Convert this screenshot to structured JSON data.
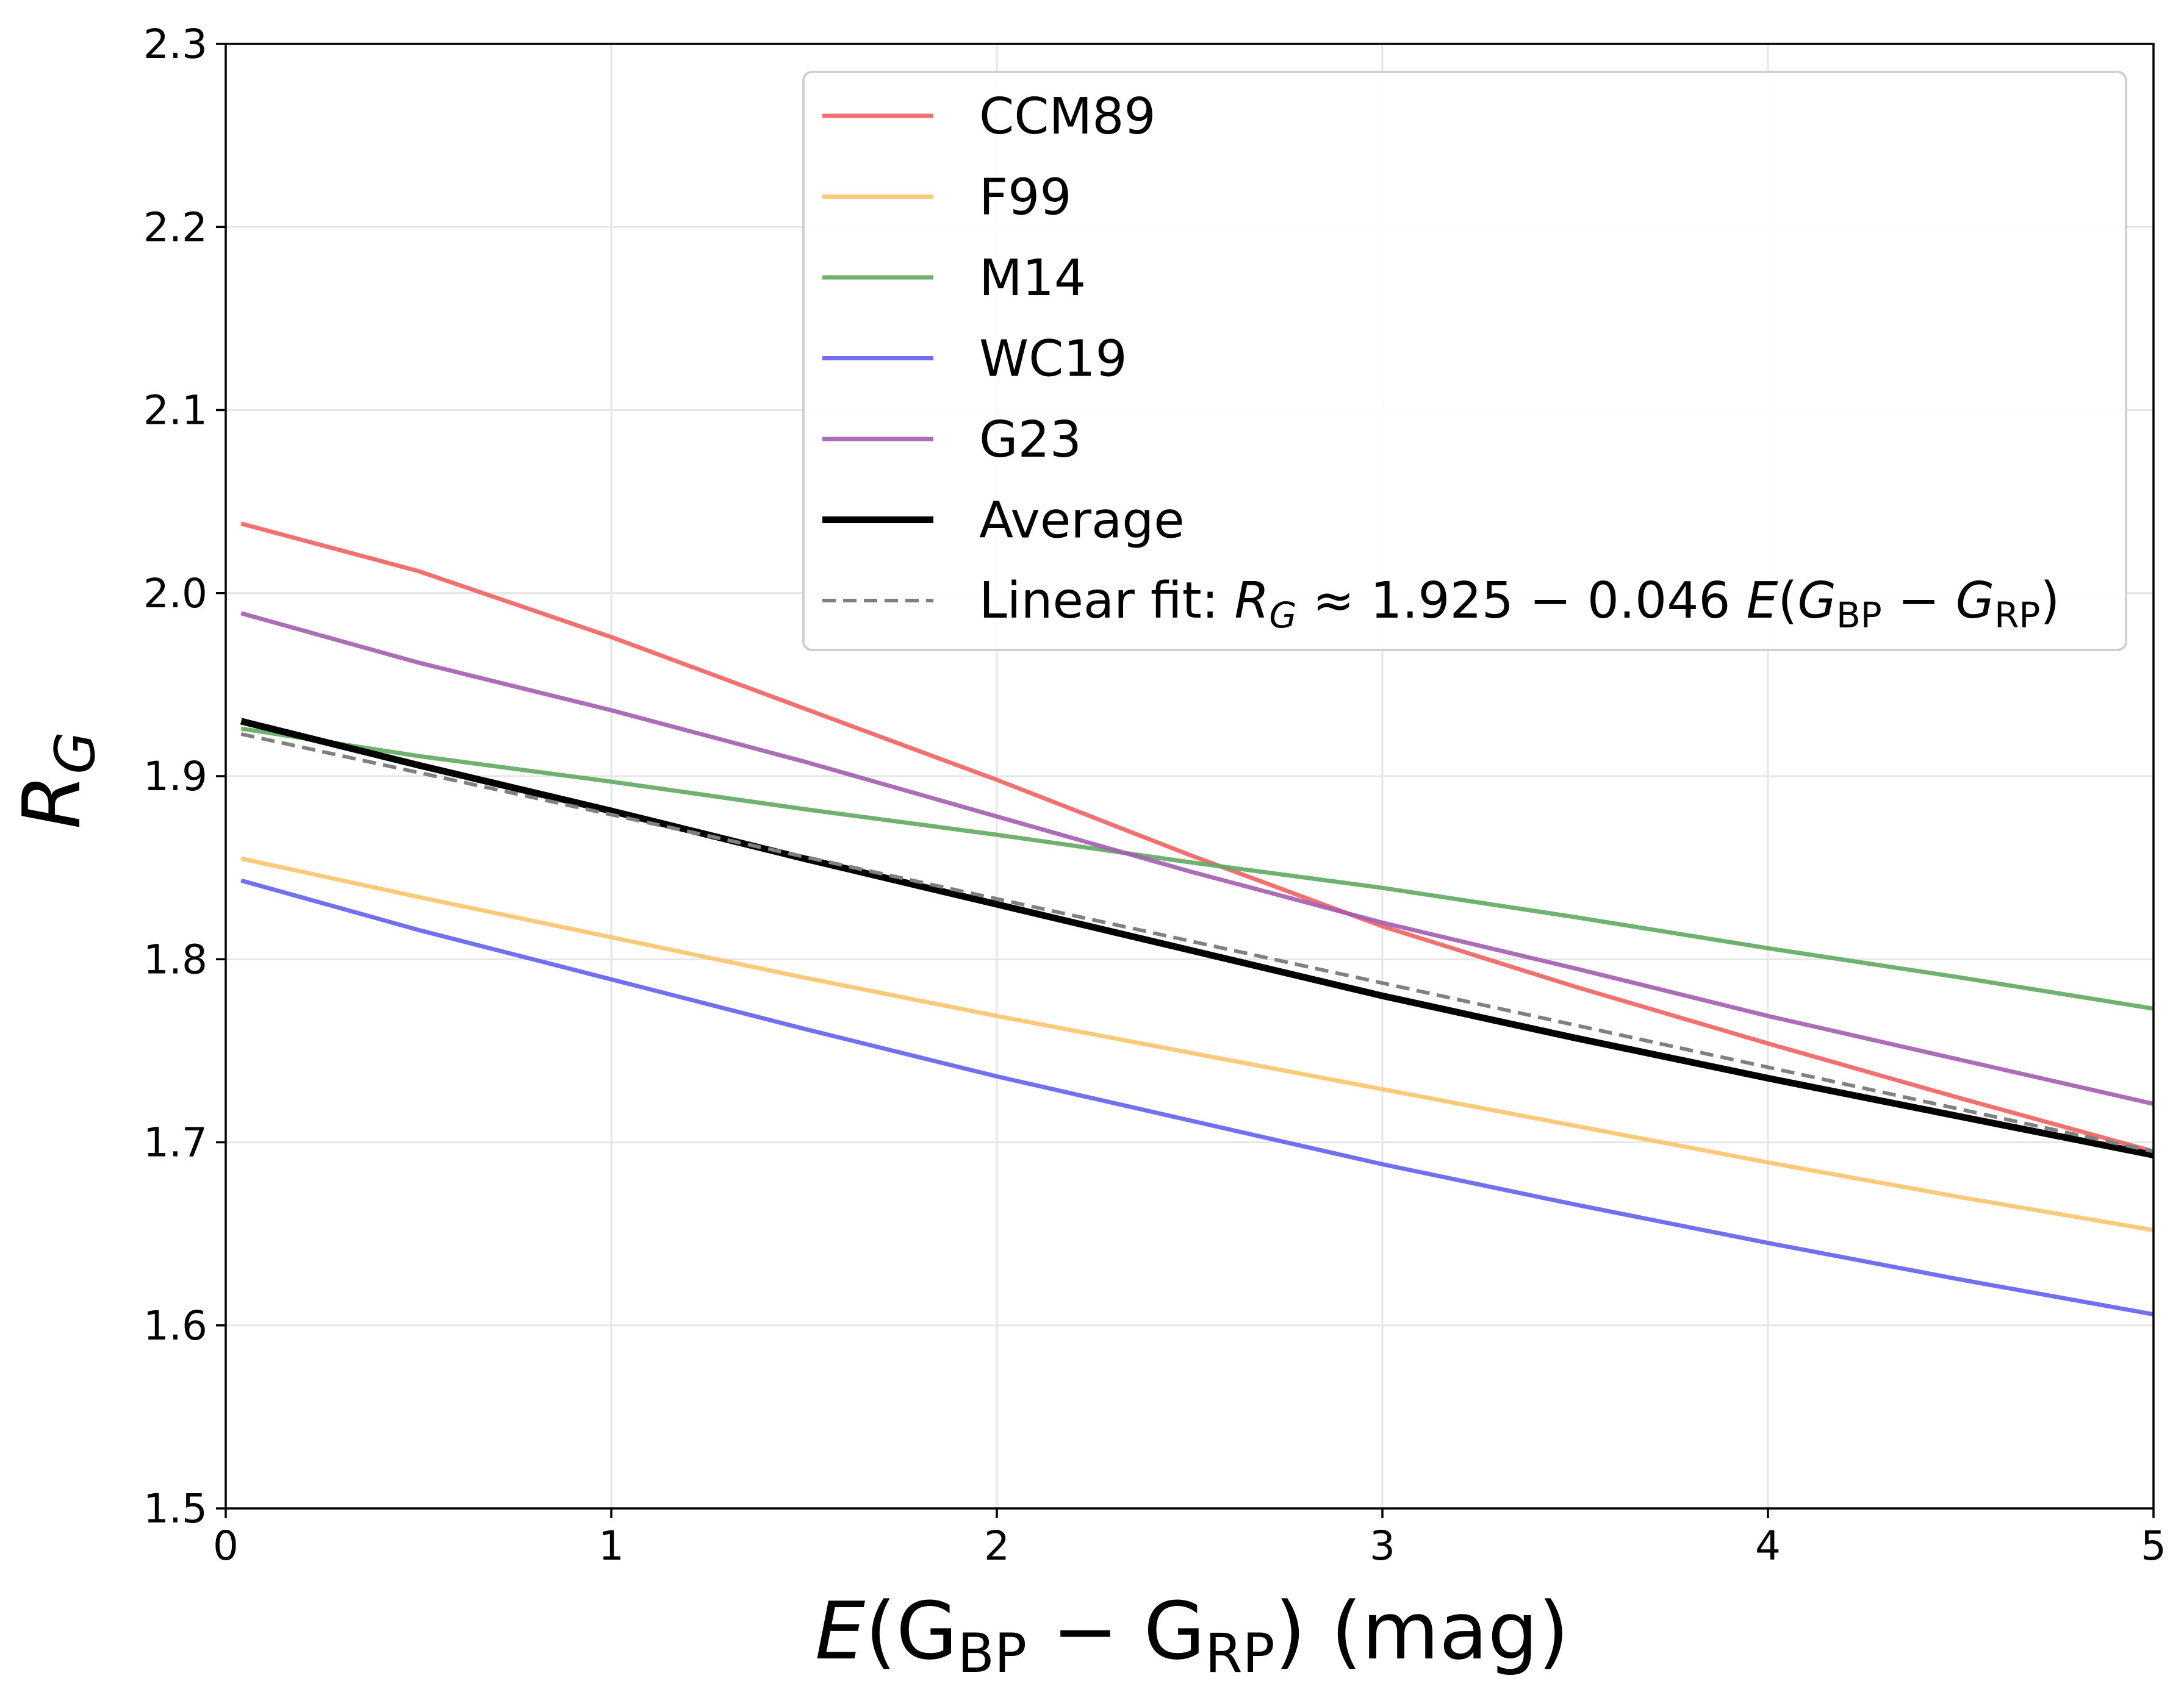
{
  "chart_data": {
    "type": "line",
    "title": "",
    "xlabel": {
      "main": "E",
      "open": "(G",
      "sub1": "BP",
      "minus": " − G",
      "sub2": "RP",
      "close": ") (mag)"
    },
    "ylabel": {
      "main": "R",
      "sub": "G"
    },
    "xlim": [
      0,
      5
    ],
    "ylim": [
      1.5,
      2.3
    ],
    "xticks": [
      0,
      1,
      2,
      3,
      4,
      5
    ],
    "xtick_labels": [
      "0",
      "1",
      "2",
      "3",
      "4",
      "5"
    ],
    "yticks": [
      1.5,
      1.6,
      1.7,
      1.8,
      1.9,
      2.0,
      2.1,
      2.2,
      2.3
    ],
    "ytick_labels": [
      "1.5",
      "1.6",
      "1.7",
      "1.8",
      "1.9",
      "2.0",
      "2.1",
      "2.2",
      "2.3"
    ],
    "grid": true,
    "legend_position": "top-right",
    "x": [
      0.04,
      0.5,
      1.0,
      1.5,
      2.0,
      2.5,
      3.0,
      3.5,
      4.0,
      4.5,
      5.0
    ],
    "series": [
      {
        "name": "CCM89",
        "color": "#f06060",
        "style": "solid",
        "values": [
          2.038,
          2.012,
          1.976,
          1.937,
          1.898,
          1.857,
          1.818,
          1.785,
          1.754,
          1.724,
          1.695
        ]
      },
      {
        "name": "F99",
        "color": "#f8c46c",
        "style": "solid",
        "values": [
          1.855,
          1.834,
          1.812,
          1.79,
          1.769,
          1.749,
          1.729,
          1.709,
          1.689,
          1.67,
          1.652
        ]
      },
      {
        "name": "M14",
        "color": "#5fa85f",
        "style": "solid",
        "values": [
          1.926,
          1.911,
          1.897,
          1.882,
          1.868,
          1.853,
          1.839,
          1.823,
          1.806,
          1.79,
          1.773
        ]
      },
      {
        "name": "WC19",
        "color": "#6060ee",
        "style": "solid",
        "values": [
          1.843,
          1.816,
          1.789,
          1.762,
          1.736,
          1.712,
          1.688,
          1.666,
          1.645,
          1.625,
          1.606
        ]
      },
      {
        "name": "G23",
        "color": "#a45cb0",
        "style": "solid",
        "values": [
          1.989,
          1.962,
          1.936,
          1.908,
          1.878,
          1.848,
          1.82,
          1.795,
          1.769,
          1.745,
          1.721
        ]
      },
      {
        "name": "Average",
        "color": "#000000",
        "style": "solid-thick",
        "values": [
          1.93,
          1.906,
          1.881,
          1.855,
          1.83,
          1.805,
          1.78,
          1.757,
          1.735,
          1.714,
          1.693
        ]
      },
      {
        "name": "Linear fit: R_G ≈ 1.925 − 0.046 E(G_BP − G_RP)",
        "color": "#808080",
        "style": "dashed",
        "values": [
          1.923,
          1.902,
          1.879,
          1.856,
          1.833,
          1.81,
          1.787,
          1.764,
          1.741,
          1.718,
          1.695
        ]
      }
    ],
    "legend_fit_label": {
      "pre": "Linear fit: ",
      "R": "R",
      "Rsub": "G",
      "mid": " ≈ 1.925 − 0.046 ",
      "E": "E",
      "open": "(",
      "G1": "G",
      "sub1": "BP",
      "minus": " − ",
      "G2": "G",
      "sub2": "RP",
      "close": ")"
    }
  }
}
